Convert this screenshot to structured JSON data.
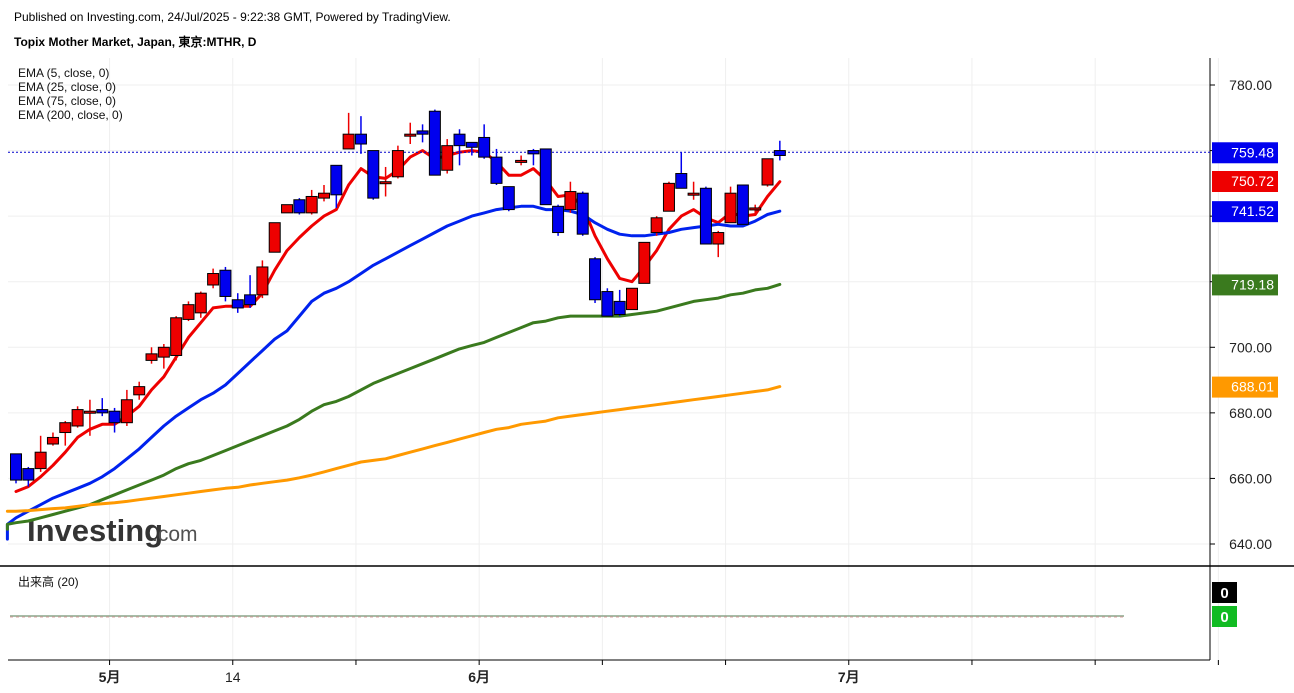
{
  "header": {
    "publish_line": "Published on Investing.com, 24/Jul/2025 - 9:22:38 GMT, Powered by TradingView.",
    "symbol_line": "Topix Mother Market, Japan, 東京:MTHR, D"
  },
  "watermark": {
    "brand": "Investing",
    "suffix": ".com"
  },
  "colors": {
    "up_candle": "#ee0000",
    "down_candle": "#0000ee",
    "ema5": "#ee0000",
    "ema25": "#0022ee",
    "ema75": "#3a7a1e",
    "ema200": "#ff9900",
    "last_price_line": "#0000cc",
    "volume_down": "#000000",
    "volume_up": "#11bb22"
  },
  "chart_data": {
    "type": "candlestick",
    "title": "Topix Mother Market, Japan, 東京:MTHR, D",
    "ylim": [
      633,
      792
    ],
    "y_ticks": [
      640,
      660,
      680,
      700,
      720,
      740,
      760,
      780
    ],
    "y_tick_labels": [
      "640.00",
      "660.00",
      "680.00",
      "700.00",
      "",
      "",
      "",
      "780.00"
    ],
    "x_ticks": [
      {
        "label": "5月",
        "bold": true,
        "index": 8
      },
      {
        "label": "14",
        "bold": false,
        "index": 18
      },
      {
        "label": "",
        "bold": false,
        "index": 28
      },
      {
        "label": "6月",
        "bold": true,
        "index": 38
      },
      {
        "label": "",
        "bold": false,
        "index": 48
      },
      {
        "label": "",
        "bold": false,
        "index": 58
      },
      {
        "label": "",
        "bold": false,
        "index": 68
      },
      {
        "label": "7月",
        "bold": true,
        "index": 68
      },
      {
        "label": "",
        "bold": false,
        "index": 78
      },
      {
        "label": "",
        "bold": false,
        "index": 88
      },
      {
        "label": "",
        "bold": false,
        "index": 98
      }
    ],
    "candles": [
      {
        "o": 667.5,
        "h": 667.5,
        "l": 658.5,
        "c": 659.5
      },
      {
        "o": 663.0,
        "h": 663.5,
        "l": 657.5,
        "c": 659.5
      },
      {
        "o": 663.0,
        "h": 673.0,
        "l": 662.0,
        "c": 668.0
      },
      {
        "o": 670.5,
        "h": 674.0,
        "l": 670.0,
        "c": 672.5
      },
      {
        "o": 674.0,
        "h": 677.5,
        "l": 670.0,
        "c": 677.0
      },
      {
        "o": 676.0,
        "h": 682.0,
        "l": 675.5,
        "c": 681.0
      },
      {
        "o": 680.5,
        "h": 684.0,
        "l": 673.0,
        "c": 680.5
      },
      {
        "o": 681.0,
        "h": 684.5,
        "l": 679.0,
        "c": 680.0
      },
      {
        "o": 680.5,
        "h": 681.5,
        "l": 674.0,
        "c": 677.0
      },
      {
        "o": 677.0,
        "h": 687.0,
        "l": 676.0,
        "c": 684.0
      },
      {
        "o": 685.5,
        "h": 689.5,
        "l": 684.0,
        "c": 688.0
      },
      {
        "o": 696.0,
        "h": 700.0,
        "l": 695.0,
        "c": 698.0
      },
      {
        "o": 697.0,
        "h": 701.0,
        "l": 693.5,
        "c": 700.0
      },
      {
        "o": 697.5,
        "h": 709.5,
        "l": 696.0,
        "c": 709.0
      },
      {
        "o": 708.5,
        "h": 714.0,
        "l": 708.0,
        "c": 713.0
      },
      {
        "o": 710.5,
        "h": 717.0,
        "l": 709.0,
        "c": 716.5
      },
      {
        "o": 719.0,
        "h": 724.0,
        "l": 718.0,
        "c": 722.5
      },
      {
        "o": 723.5,
        "h": 724.5,
        "l": 714.0,
        "c": 715.5
      },
      {
        "o": 714.5,
        "h": 716.5,
        "l": 710.5,
        "c": 712.0
      },
      {
        "o": 716.0,
        "h": 722.0,
        "l": 712.0,
        "c": 713.0
      },
      {
        "o": 716.0,
        "h": 726.5,
        "l": 715.0,
        "c": 724.5
      },
      {
        "o": 729.0,
        "h": 738.0,
        "l": 729.0,
        "c": 738.0
      },
      {
        "o": 741.0,
        "h": 743.5,
        "l": 741.0,
        "c": 743.5
      },
      {
        "o": 745.0,
        "h": 745.5,
        "l": 740.5,
        "c": 741.0
      },
      {
        "o": 741.0,
        "h": 748.0,
        "l": 740.5,
        "c": 746.0
      },
      {
        "o": 745.5,
        "h": 749.5,
        "l": 744.5,
        "c": 747.0
      },
      {
        "o": 755.5,
        "h": 755.5,
        "l": 742.5,
        "c": 746.5
      },
      {
        "o": 760.5,
        "h": 771.5,
        "l": 760.5,
        "c": 765.0
      },
      {
        "o": 765.0,
        "h": 770.5,
        "l": 759.0,
        "c": 762.0
      },
      {
        "o": 760.0,
        "h": 760.0,
        "l": 745.0,
        "c": 745.5
      },
      {
        "o": 750.0,
        "h": 755.0,
        "l": 746.0,
        "c": 750.5
      },
      {
        "o": 752.0,
        "h": 761.5,
        "l": 751.5,
        "c": 760.0
      },
      {
        "o": 764.5,
        "h": 768.5,
        "l": 762.0,
        "c": 765.0
      },
      {
        "o": 766.0,
        "h": 768.0,
        "l": 762.5,
        "c": 765.0
      },
      {
        "o": 772.0,
        "h": 772.5,
        "l": 752.5,
        "c": 752.5
      },
      {
        "o": 754.0,
        "h": 763.5,
        "l": 753.0,
        "c": 761.5
      },
      {
        "o": 765.0,
        "h": 766.5,
        "l": 755.5,
        "c": 761.5
      },
      {
        "o": 762.5,
        "h": 762.5,
        "l": 758.5,
        "c": 761.0
      },
      {
        "o": 764.0,
        "h": 768.0,
        "l": 757.5,
        "c": 758.0
      },
      {
        "o": 758.0,
        "h": 760.5,
        "l": 749.5,
        "c": 750.0
      },
      {
        "o": 749.0,
        "h": 749.0,
        "l": 741.5,
        "c": 742.0
      },
      {
        "o": 756.5,
        "h": 758.5,
        "l": 755.5,
        "c": 757.0
      },
      {
        "o": 760.0,
        "h": 760.5,
        "l": 755.5,
        "c": 759.0
      },
      {
        "o": 760.5,
        "h": 760.5,
        "l": 743.5,
        "c": 743.5
      },
      {
        "o": 743.0,
        "h": 743.5,
        "l": 734.0,
        "c": 735.0
      },
      {
        "o": 742.0,
        "h": 750.5,
        "l": 741.0,
        "c": 747.5
      },
      {
        "o": 747.0,
        "h": 747.5,
        "l": 734.0,
        "c": 734.5
      },
      {
        "o": 727.0,
        "h": 727.5,
        "l": 713.5,
        "c": 714.5
      },
      {
        "o": 717.0,
        "h": 718.0,
        "l": 709.5,
        "c": 709.5
      },
      {
        "o": 714.0,
        "h": 717.5,
        "l": 709.5,
        "c": 710.0
      },
      {
        "o": 711.5,
        "h": 718.0,
        "l": 711.5,
        "c": 718.0
      },
      {
        "o": 719.5,
        "h": 732.0,
        "l": 719.5,
        "c": 732.0
      },
      {
        "o": 735.0,
        "h": 740.0,
        "l": 734.0,
        "c": 739.5
      },
      {
        "o": 741.5,
        "h": 750.5,
        "l": 741.5,
        "c": 750.0
      },
      {
        "o": 753.0,
        "h": 759.5,
        "l": 748.5,
        "c": 748.5
      },
      {
        "o": 747.0,
        "h": 750.5,
        "l": 745.0,
        "c": 747.0
      },
      {
        "o": 748.5,
        "h": 749.0,
        "l": 731.5,
        "c": 731.5
      },
      {
        "o": 731.5,
        "h": 735.5,
        "l": 727.5,
        "c": 735.0
      },
      {
        "o": 738.0,
        "h": 749.0,
        "l": 738.0,
        "c": 747.0
      },
      {
        "o": 749.5,
        "h": 749.5,
        "l": 737.5,
        "c": 737.5
      },
      {
        "o": 742.5,
        "h": 743.5,
        "l": 741.0,
        "c": 742.5
      },
      {
        "o": 749.5,
        "h": 757.5,
        "l": 749.0,
        "c": 757.5
      },
      {
        "o": 760.0,
        "h": 763.0,
        "l": 757.0,
        "c": 758.5
      }
    ],
    "series": [
      {
        "name": "EMA (5, close, 0)",
        "line_width": 3,
        "values": [
          656.0,
          657.5,
          660.5,
          664.0,
          668.0,
          672.5,
          675.0,
          676.5,
          676.5,
          679.0,
          682.0,
          687.0,
          691.0,
          697.0,
          703.0,
          707.5,
          712.0,
          712.5,
          712.5,
          712.5,
          716.5,
          723.5,
          729.5,
          733.5,
          737.0,
          740.0,
          742.0,
          749.5,
          754.5,
          752.0,
          751.5,
          754.0,
          758.0,
          760.0,
          757.5,
          758.5,
          759.5,
          760.0,
          759.5,
          756.5,
          752.5,
          752.5,
          754.5,
          751.0,
          746.0,
          746.5,
          743.0,
          734.0,
          727.0,
          721.0,
          720.0,
          724.5,
          729.5,
          736.0,
          740.0,
          742.0,
          739.5,
          738.0,
          741.0,
          740.0,
          740.5,
          746.0,
          750.5
        ]
      },
      {
        "name": "EMA (25, close, 0)",
        "line_width": 3,
        "values": [
          641.5,
          642.5,
          644.0,
          646.0,
          648.0,
          650.0,
          652.0,
          654.0,
          655.5,
          657.0,
          658.5,
          660.5,
          663.0,
          666.0,
          669.0,
          672.5,
          676.0,
          679.0,
          681.5,
          684.0,
          686.0,
          688.5,
          692.0,
          695.5,
          699.0,
          702.5,
          705.0,
          709.5,
          714.0,
          716.5,
          718.0,
          720.0,
          722.5,
          725.0,
          727.0,
          729.0,
          731.0,
          733.0,
          735.0,
          737.0,
          738.5,
          740.0,
          741.0,
          742.0,
          742.5,
          743.0,
          743.0,
          742.0,
          742.0,
          741.5,
          740.5,
          738.0,
          736.0,
          734.5,
          734.0,
          734.0,
          734.5,
          735.0,
          736.0,
          736.5,
          737.0,
          737.5,
          737.0,
          737.0,
          738.5,
          740.5,
          741.5
        ]
      },
      {
        "name": "EMA (75, close, 0)",
        "line_width": 3,
        "values": [
          644.5,
          645.0,
          645.5,
          646.0,
          646.5,
          647.0,
          648.0,
          649.0,
          650.0,
          651.0,
          652.0,
          653.5,
          655.0,
          656.5,
          658.0,
          659.5,
          661.0,
          663.0,
          664.5,
          665.5,
          667.0,
          668.5,
          670.0,
          671.5,
          673.0,
          674.5,
          676.0,
          678.0,
          680.5,
          682.5,
          683.5,
          685.0,
          687.0,
          689.0,
          690.5,
          692.0,
          693.5,
          695.0,
          696.5,
          698.0,
          699.5,
          700.5,
          701.5,
          703.0,
          704.5,
          706.0,
          707.5,
          708.0,
          709.0,
          709.5,
          709.5,
          709.5,
          709.5,
          709.5,
          710.0,
          710.5,
          711.0,
          712.0,
          713.0,
          714.0,
          714.5,
          715.0,
          716.0,
          716.5,
          717.5,
          718.0,
          719.18
        ]
      },
      {
        "name": "EMA (200, close, 0)",
        "line_width": 3,
        "values": [
          650.0,
          650.0,
          650.2,
          650.5,
          650.8,
          651.0,
          651.5,
          652.0,
          652.3,
          652.6,
          653.0,
          653.5,
          654.0,
          654.5,
          655.0,
          655.5,
          656.0,
          656.5,
          657.0,
          657.3,
          658.0,
          658.5,
          659.0,
          659.5,
          660.2,
          661.0,
          662.0,
          663.0,
          664.0,
          665.0,
          665.5,
          666.0,
          667.0,
          668.0,
          669.0,
          670.0,
          671.0,
          672.0,
          673.0,
          674.0,
          675.0,
          675.5,
          676.5,
          677.0,
          677.5,
          678.5,
          679.0,
          679.5,
          680.0,
          680.5,
          681.0,
          681.5,
          682.0,
          682.5,
          683.0,
          683.5,
          684.0,
          684.5,
          685.0,
          685.5,
          686.0,
          686.5,
          687.0,
          688.01
        ]
      }
    ],
    "legend": [
      "EMA (5, close, 0)",
      "EMA (25, close, 0)",
      "EMA (75, close, 0)",
      "EMA (200, close, 0)"
    ],
    "price_labels": [
      {
        "text": "759.48",
        "value": 759.48,
        "bg": "#0000ee"
      },
      {
        "text": "750.72",
        "value": 750.72,
        "bg": "#ee0000"
      },
      {
        "text": "741.52",
        "value": 741.52,
        "bg": "#0000ee"
      },
      {
        "text": "719.18",
        "value": 719.18,
        "bg": "#3a7a1e"
      },
      {
        "text": "688.01",
        "value": 688.01,
        "bg": "#ff9900"
      }
    ],
    "last_price": 759.48,
    "grid": true,
    "volume_panel": {
      "label": "出来高 (20)",
      "values": [
        0,
        0
      ],
      "value_labels": [
        "0",
        "0"
      ]
    }
  }
}
